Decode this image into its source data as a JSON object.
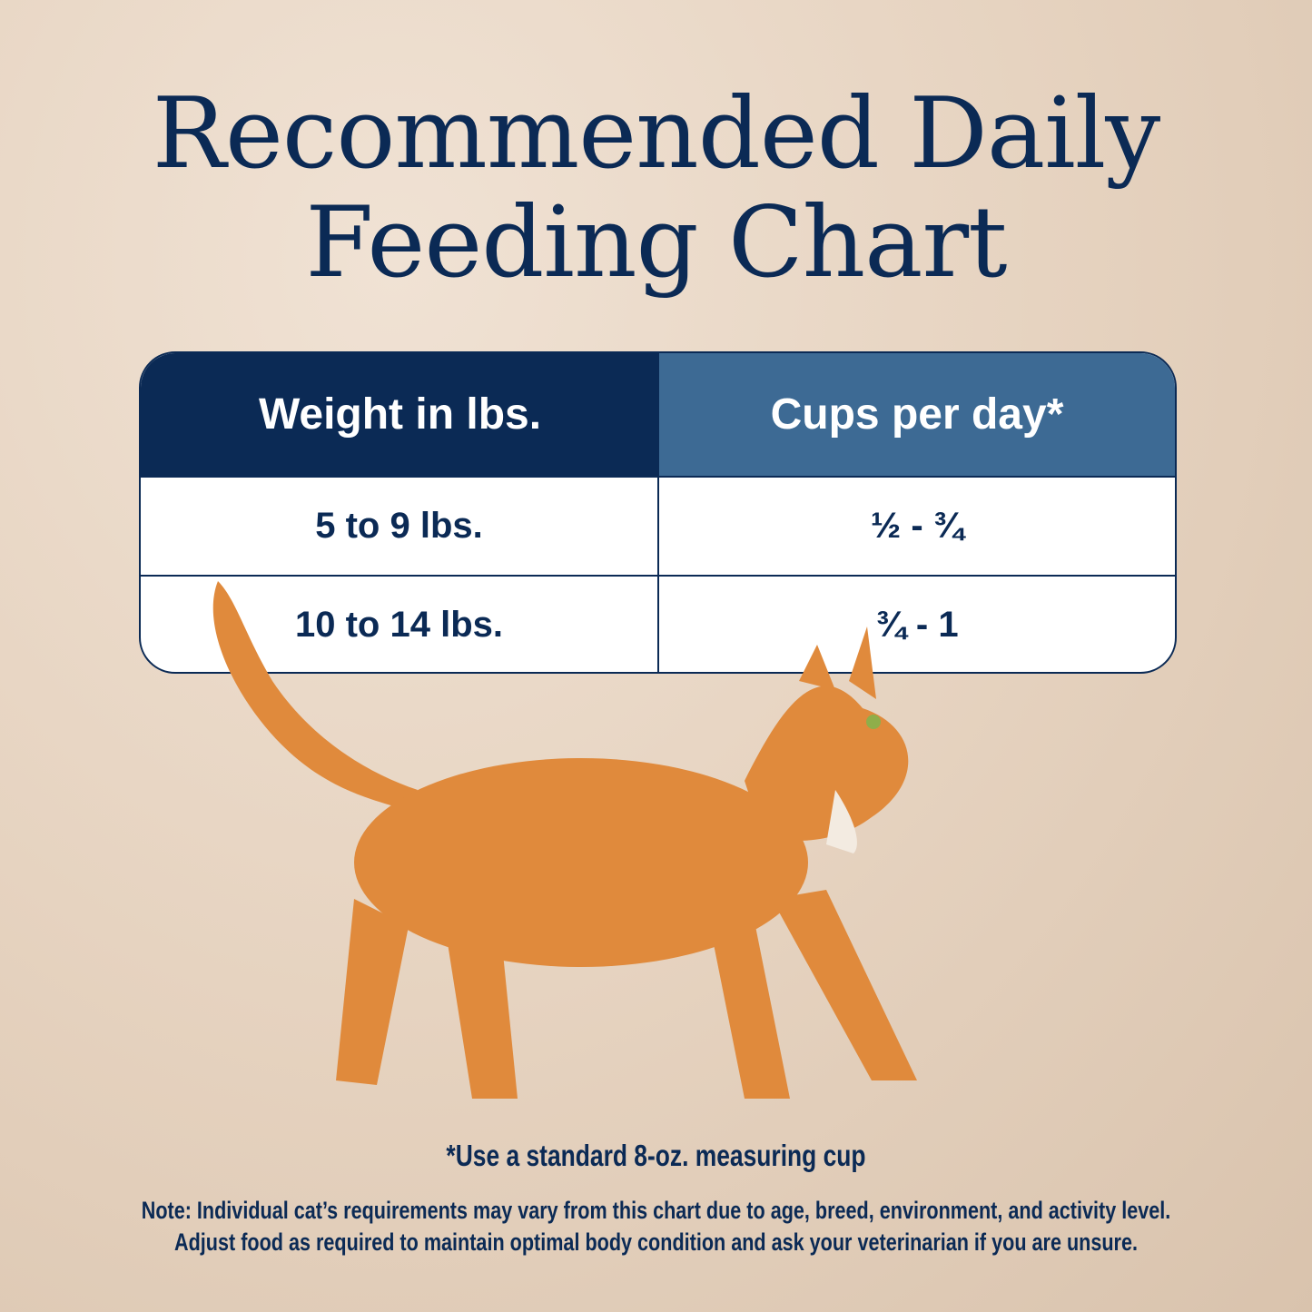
{
  "title": {
    "line1": "Recommended Daily",
    "line2": "Feeding Chart"
  },
  "table": {
    "headers": [
      "Weight in lbs.",
      "Cups per day*"
    ],
    "rows": [
      [
        "5 to 9 lbs.",
        "½ - ¾"
      ],
      [
        "10 to 14 lbs.",
        "¾ - 1"
      ]
    ]
  },
  "footnote": "*Use a standard 8-oz. measuring cup",
  "note": {
    "line1": "Note: Individual cat’s requirements may vary from this chart due to age, breed, environment, and activity level.",
    "line2": "Adjust food as required to maintain optimal body condition and ask your veterinarian if you are unsure."
  },
  "colors": {
    "navy": "#0b2a55",
    "header_blue": "#3d6a94",
    "background": "#e6d3c0",
    "cat_orange": "#e08a3c"
  },
  "image": "orange-tabby-cat-walking"
}
